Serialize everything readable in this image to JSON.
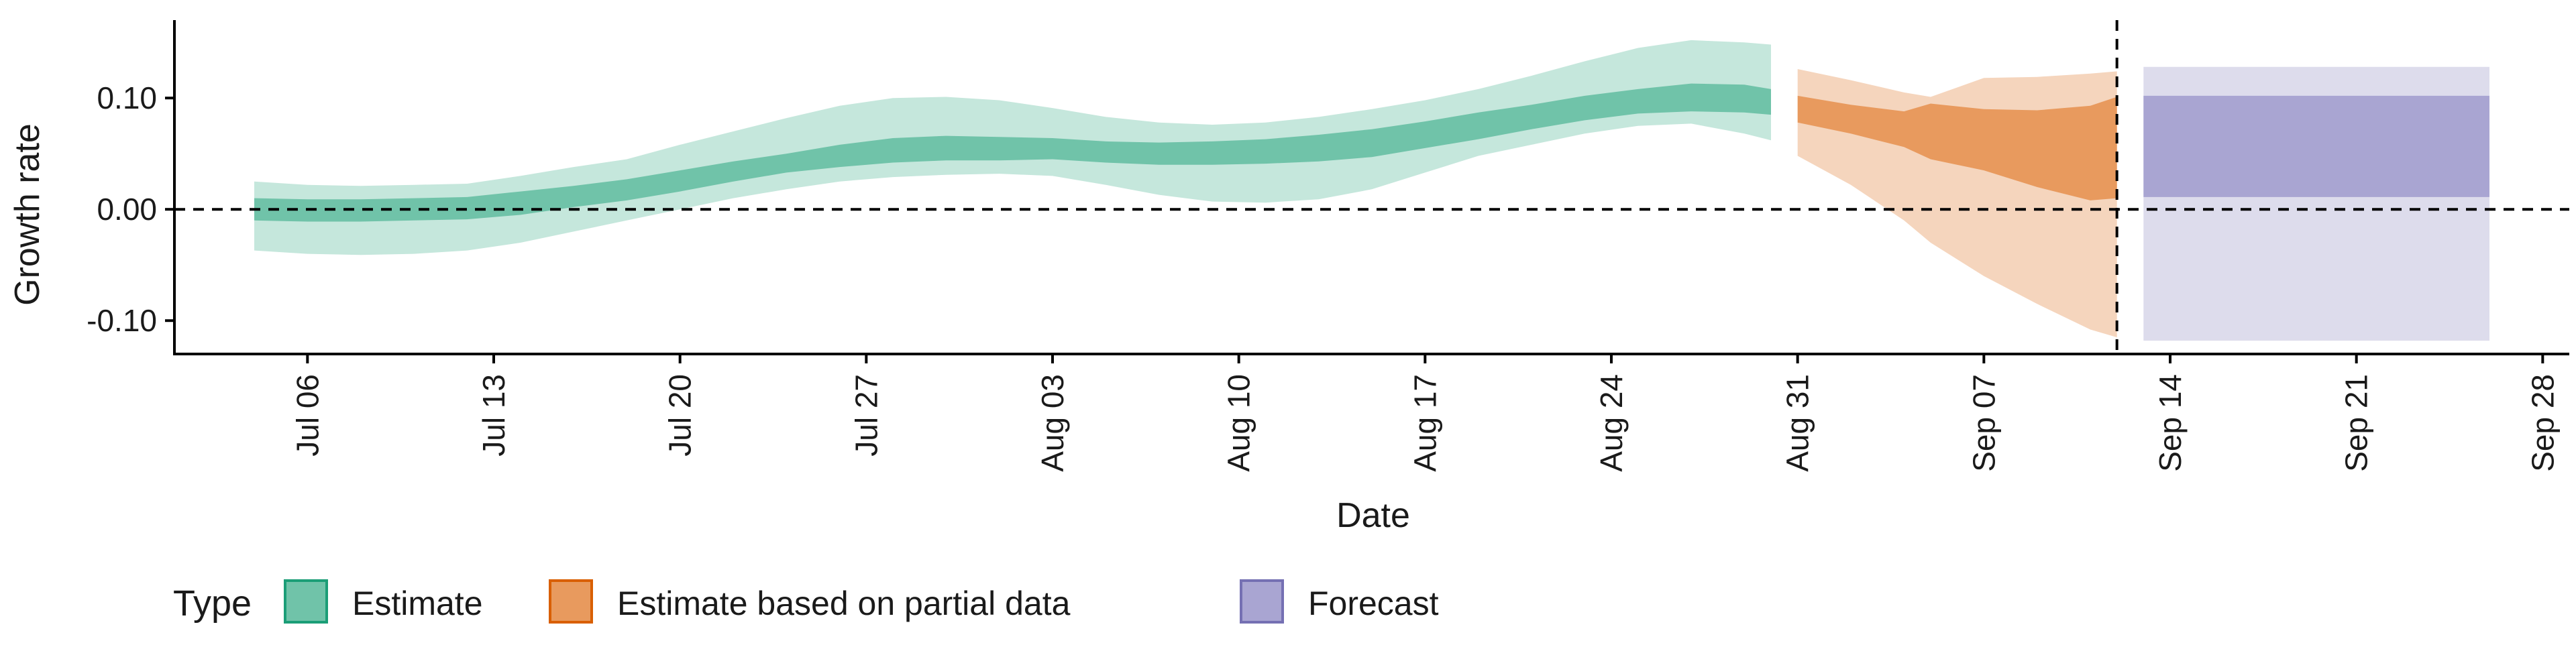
{
  "chart_data": {
    "type": "area",
    "xlabel": "Date",
    "ylabel": "Growth rate",
    "x_range": [
      "2020-07-01",
      "2020-09-29"
    ],
    "ylim": [
      -0.13,
      0.17
    ],
    "y_ticks": [
      -0.1,
      0.0,
      0.1
    ],
    "y_tick_labels": [
      "-0.10",
      "0.00",
      "0.10"
    ],
    "x_ticks": [
      "2020-07-06",
      "2020-07-13",
      "2020-07-20",
      "2020-07-27",
      "2020-08-03",
      "2020-08-10",
      "2020-08-17",
      "2020-08-24",
      "2020-08-31",
      "2020-09-07",
      "2020-09-14",
      "2020-09-21",
      "2020-09-28"
    ],
    "x_tick_labels": [
      "Jul 06",
      "Jul 13",
      "Jul 20",
      "Jul 27",
      "Aug 03",
      "Aug 10",
      "Aug 17",
      "Aug 24",
      "Aug 31",
      "Sep 07",
      "Sep 14",
      "Sep 21",
      "Sep 28"
    ],
    "reference_lines": {
      "horizontal_y": 0.0,
      "vertical_date": "2020-09-12"
    },
    "grid": false,
    "legend": {
      "title": "Type",
      "position": "bottom-left",
      "entries": [
        {
          "label": "Estimate",
          "fill": "#70c3a9",
          "border": "#1b9e77"
        },
        {
          "label": "Estimate based on partial data",
          "fill": "#e89a5e",
          "border": "#d95f02"
        },
        {
          "label": "Forecast",
          "fill": "#a9a5d2",
          "border": "#7570b3"
        }
      ]
    },
    "series": [
      {
        "name": "Estimate",
        "inner_color": "#70c3a9",
        "outer_color": "#c5e7dc",
        "dates": [
          "2020-07-04",
          "2020-07-06",
          "2020-07-08",
          "2020-07-10",
          "2020-07-12",
          "2020-07-14",
          "2020-07-16",
          "2020-07-18",
          "2020-07-20",
          "2020-07-22",
          "2020-07-24",
          "2020-07-26",
          "2020-07-28",
          "2020-07-30",
          "2020-08-01",
          "2020-08-03",
          "2020-08-05",
          "2020-08-07",
          "2020-08-09",
          "2020-08-11",
          "2020-08-13",
          "2020-08-15",
          "2020-08-17",
          "2020-08-19",
          "2020-08-21",
          "2020-08-23",
          "2020-08-25",
          "2020-08-27",
          "2020-08-29",
          "2020-08-30"
        ],
        "upper_90": [
          0.025,
          0.022,
          0.021,
          0.022,
          0.023,
          0.03,
          0.038,
          0.045,
          0.058,
          0.07,
          0.082,
          0.093,
          0.1,
          0.101,
          0.098,
          0.091,
          0.083,
          0.078,
          0.076,
          0.078,
          0.083,
          0.09,
          0.098,
          0.108,
          0.12,
          0.133,
          0.145,
          0.152,
          0.15,
          0.148
        ],
        "upper_50": [
          0.01,
          0.009,
          0.009,
          0.01,
          0.011,
          0.016,
          0.021,
          0.027,
          0.035,
          0.043,
          0.05,
          0.058,
          0.064,
          0.066,
          0.065,
          0.064,
          0.061,
          0.06,
          0.061,
          0.063,
          0.067,
          0.072,
          0.079,
          0.087,
          0.094,
          0.102,
          0.108,
          0.113,
          0.112,
          0.108
        ],
        "lower_50": [
          -0.01,
          -0.011,
          -0.011,
          -0.01,
          -0.009,
          -0.005,
          0.002,
          0.008,
          0.016,
          0.025,
          0.033,
          0.038,
          0.042,
          0.044,
          0.044,
          0.045,
          0.042,
          0.04,
          0.04,
          0.041,
          0.043,
          0.047,
          0.055,
          0.063,
          0.072,
          0.08,
          0.086,
          0.088,
          0.087,
          0.085
        ],
        "lower_90": [
          -0.037,
          -0.04,
          -0.041,
          -0.04,
          -0.037,
          -0.03,
          -0.02,
          -0.01,
          0.0,
          0.01,
          0.018,
          0.025,
          0.029,
          0.031,
          0.032,
          0.03,
          0.022,
          0.013,
          0.007,
          0.006,
          0.009,
          0.018,
          0.033,
          0.048,
          0.058,
          0.068,
          0.075,
          0.077,
          0.068,
          0.062
        ]
      },
      {
        "name": "Estimate based on partial data",
        "inner_color": "#e89a5e",
        "outer_color": "#f5d5bd",
        "dates": [
          "2020-08-31",
          "2020-09-02",
          "2020-09-04",
          "2020-09-05",
          "2020-09-07",
          "2020-09-09",
          "2020-09-11",
          "2020-09-12"
        ],
        "upper_90": [
          0.126,
          0.116,
          0.105,
          0.101,
          0.118,
          0.119,
          0.122,
          0.124
        ],
        "upper_50": [
          0.102,
          0.094,
          0.088,
          0.095,
          0.09,
          0.089,
          0.093,
          0.101
        ],
        "lower_50": [
          0.078,
          0.068,
          0.056,
          0.045,
          0.035,
          0.02,
          0.008,
          0.01
        ],
        "lower_90": [
          0.048,
          0.022,
          -0.01,
          -0.03,
          -0.06,
          -0.085,
          -0.108,
          -0.115
        ]
      },
      {
        "name": "Forecast",
        "inner_color": "#a9a5d2",
        "outer_color": "#dddcec",
        "dates": [
          "2020-09-13",
          "2020-09-26"
        ],
        "upper_90": [
          0.128,
          0.128
        ],
        "upper_50": [
          0.102,
          0.102
        ],
        "lower_50": [
          0.011,
          0.011
        ],
        "lower_90": [
          -0.118,
          -0.118
        ]
      }
    ]
  }
}
